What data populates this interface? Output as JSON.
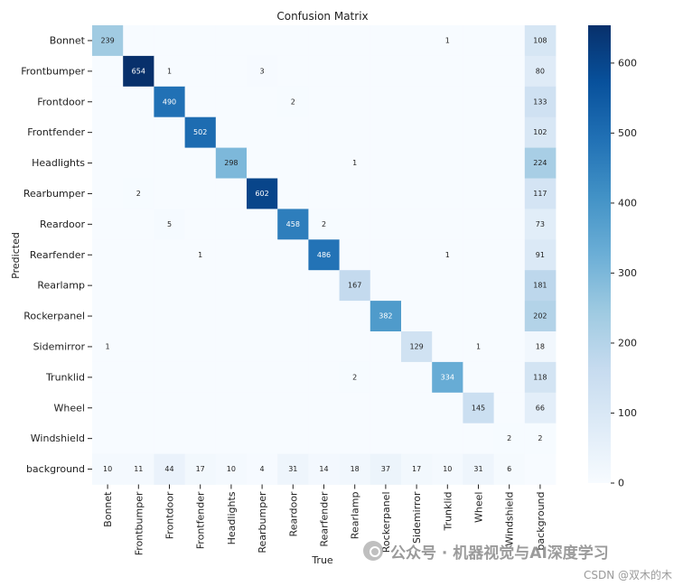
{
  "chart_data": {
    "type": "heatmap",
    "title": "Confusion Matrix",
    "xlabel": "True",
    "ylabel": "Predicted",
    "x_categories": [
      "Bonnet",
      "Frontbumper",
      "Frontdoor",
      "Frontfender",
      "Headlights",
      "Rearbumper",
      "Reardoor",
      "Rearfender",
      "Rearlamp",
      "Rockerpanel",
      "Sidemirror",
      "Trunklid",
      "Wheel",
      "Windshield",
      "background"
    ],
    "y_categories": [
      "Bonnet",
      "Frontbumper",
      "Frontdoor",
      "Frontfender",
      "Headlights",
      "Rearbumper",
      "Reardoor",
      "Rearfender",
      "Rearlamp",
      "Rockerpanel",
      "Sidemirror",
      "Trunklid",
      "Wheel",
      "Windshield",
      "background"
    ],
    "values": [
      [
        239,
        0,
        0,
        0,
        0,
        0,
        0,
        0,
        0,
        0,
        0,
        1,
        0,
        0,
        108
      ],
      [
        0,
        654,
        1,
        0,
        0,
        3,
        0,
        0,
        0,
        0,
        0,
        0,
        0,
        0,
        80
      ],
      [
        0,
        0,
        490,
        0,
        0,
        0,
        2,
        0,
        0,
        0,
        0,
        0,
        0,
        0,
        133
      ],
      [
        0,
        0,
        0,
        502,
        0,
        0,
        0,
        0,
        0,
        0,
        0,
        0,
        0,
        0,
        102
      ],
      [
        0,
        0,
        0,
        0,
        298,
        0,
        0,
        0,
        1,
        0,
        0,
        0,
        0,
        0,
        224
      ],
      [
        0,
        2,
        0,
        0,
        0,
        602,
        0,
        0,
        0,
        0,
        0,
        0,
        0,
        0,
        117
      ],
      [
        0,
        0,
        5,
        0,
        0,
        0,
        458,
        2,
        0,
        0,
        0,
        0,
        0,
        0,
        73
      ],
      [
        0,
        0,
        0,
        1,
        0,
        0,
        0,
        486,
        0,
        0,
        0,
        1,
        0,
        0,
        91
      ],
      [
        0,
        0,
        0,
        0,
        0,
        0,
        0,
        0,
        167,
        0,
        0,
        0,
        0,
        0,
        181
      ],
      [
        0,
        0,
        0,
        0,
        0,
        0,
        0,
        0,
        0,
        382,
        0,
        0,
        0,
        0,
        202
      ],
      [
        1,
        0,
        0,
        0,
        0,
        0,
        0,
        0,
        0,
        0,
        129,
        0,
        1,
        0,
        18
      ],
      [
        0,
        0,
        0,
        0,
        0,
        0,
        0,
        0,
        2,
        0,
        0,
        334,
        0,
        0,
        118
      ],
      [
        0,
        0,
        0,
        0,
        0,
        0,
        0,
        0,
        0,
        0,
        0,
        0,
        145,
        0,
        66
      ],
      [
        0,
        0,
        0,
        0,
        0,
        0,
        0,
        0,
        0,
        0,
        0,
        0,
        0,
        2,
        2
      ],
      [
        10,
        11,
        44,
        17,
        10,
        4,
        31,
        14,
        18,
        37,
        17,
        10,
        31,
        6,
        0
      ]
    ],
    "colorscale": "Blues",
    "vmin": 0,
    "vmax": 654,
    "colorbar_ticks": [
      0,
      100,
      200,
      300,
      400,
      500,
      600
    ],
    "grid": false,
    "legend": "colorbar-right"
  },
  "watermark": {
    "text": "公众号 · 机器视觉与AI深度学习",
    "icon": "wechat-icon"
  },
  "credit": "CSDN @双木的木"
}
